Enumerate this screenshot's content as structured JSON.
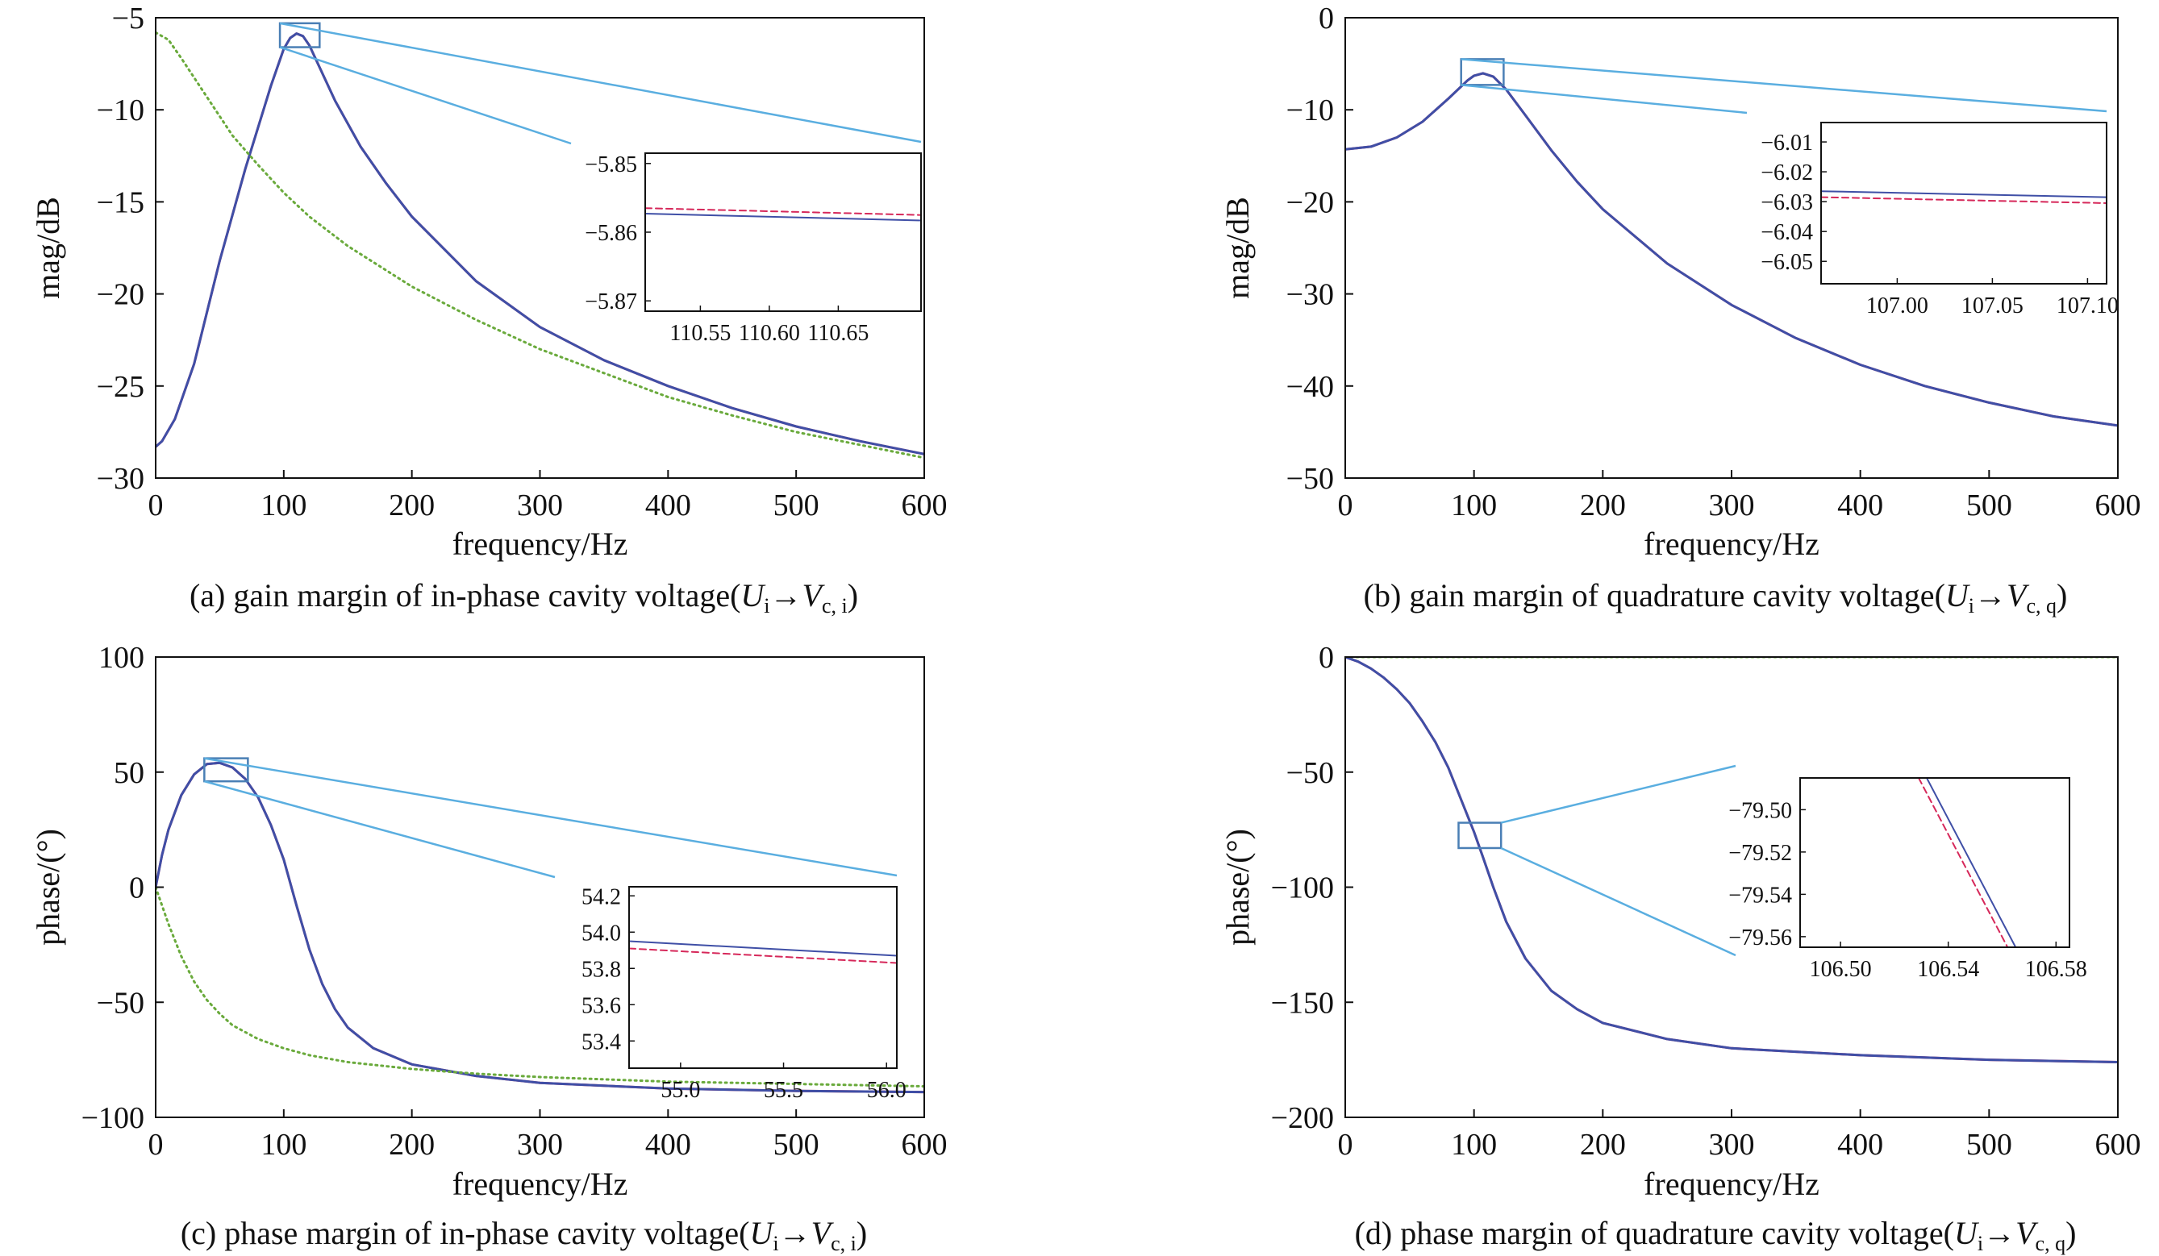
{
  "colors": {
    "red_series": "#d6285a",
    "blue_series": "#3f4fa6",
    "green_series": "#6aaa3c",
    "zoom_box": "#4a7fb5",
    "connector": "#5aaee0",
    "axis": "#111111"
  },
  "chart_data": [
    {
      "id": "a",
      "type": "line",
      "caption": {
        "prefix": "(a) gain margin of in-phase cavity voltage(",
        "U": "U",
        "usub": "i",
        "arrow": "→",
        "V": "V",
        "vsub": "c, i",
        "suffix": ")"
      },
      "xlabel": "frequency/Hz",
      "ylabel": "mag/dB",
      "xlim": [
        0,
        600
      ],
      "ylim": [
        -30,
        -5
      ],
      "xticks": [
        "0",
        "100",
        "200",
        "300",
        "400",
        "500",
        "600"
      ],
      "yticks": [
        "−5",
        "−10",
        "−15",
        "−20",
        "−25",
        "−30"
      ],
      "series": [
        {
          "color_key": "red_series",
          "style": "solid",
          "x": [
            0,
            5,
            15,
            30,
            50,
            70,
            90,
            100,
            105,
            110,
            115,
            120,
            130,
            140,
            160,
            180,
            200,
            250,
            300,
            350,
            400,
            450,
            500,
            550,
            600
          ],
          "y": [
            -28.3,
            -28.0,
            -26.8,
            -23.8,
            -18.2,
            -13.2,
            -8.7,
            -6.7,
            -6.1,
            -5.86,
            -6.0,
            -6.5,
            -8.0,
            -9.5,
            -12.0,
            -14.0,
            -15.8,
            -19.3,
            -21.8,
            -23.6,
            -25.0,
            -26.2,
            -27.2,
            -28.0,
            -28.7
          ]
        },
        {
          "color_key": "blue_series",
          "style": "solid",
          "x": [
            0,
            5,
            15,
            30,
            50,
            70,
            90,
            100,
            105,
            110,
            115,
            120,
            130,
            140,
            160,
            180,
            200,
            250,
            300,
            350,
            400,
            450,
            500,
            550,
            600
          ],
          "y": [
            -28.3,
            -28.0,
            -26.8,
            -23.8,
            -18.2,
            -13.2,
            -8.7,
            -6.7,
            -6.1,
            -5.86,
            -6.0,
            -6.5,
            -8.0,
            -9.5,
            -12.0,
            -14.0,
            -15.8,
            -19.3,
            -21.8,
            -23.6,
            -25.0,
            -26.2,
            -27.2,
            -28.0,
            -28.7
          ]
        },
        {
          "color_key": "green_series",
          "style": "dotted",
          "x": [
            0,
            10,
            20,
            40,
            60,
            80,
            100,
            120,
            150,
            200,
            250,
            300,
            350,
            400,
            450,
            500,
            550,
            600
          ],
          "y": [
            -5.8,
            -6.2,
            -7.2,
            -9.3,
            -11.4,
            -13.0,
            -14.5,
            -15.8,
            -17.4,
            -19.6,
            -21.4,
            -23.0,
            -24.3,
            -25.6,
            -26.6,
            -27.5,
            -28.2,
            -28.9
          ]
        }
      ],
      "zoom_box": {
        "x": [
          97,
          128
        ],
        "y": [
          -6.6,
          -5.3
        ]
      },
      "inset": {
        "xlim": [
          110.51,
          110.71
        ],
        "ylim": [
          -5.8715,
          -5.8485
        ],
        "xticks": [
          {
            "v": 110.55,
            "t": "110.55"
          },
          {
            "v": 110.6,
            "t": "110.60"
          },
          {
            "v": 110.65,
            "t": "110.65"
          }
        ],
        "yticks": [
          {
            "v": -5.85,
            "t": "−5.85"
          },
          {
            "v": -5.86,
            "t": "−5.86"
          },
          {
            "v": -5.87,
            "t": "−5.87"
          }
        ],
        "series": [
          {
            "color_key": "blue_series",
            "style": "solid",
            "x": [
              110.51,
              110.71
            ],
            "y": [
              -5.8573,
              -5.8583
            ]
          },
          {
            "color_key": "red_series",
            "style": "dashed",
            "x": [
              110.51,
              110.71
            ],
            "y": [
              -5.8565,
              -5.8575
            ]
          }
        ]
      }
    },
    {
      "id": "b",
      "type": "line",
      "caption": {
        "prefix": "(b) gain margin of quadrature cavity voltage(",
        "U": "U",
        "usub": "i",
        "arrow": "→",
        "V": "V",
        "vsub": "c, q",
        "suffix": ")"
      },
      "xlabel": "frequency/Hz",
      "ylabel": "mag/dB",
      "xlim": [
        0,
        600
      ],
      "ylim": [
        -50,
        0
      ],
      "xticks": [
        "0",
        "100",
        "200",
        "300",
        "400",
        "500",
        "600"
      ],
      "yticks": [
        "0",
        "−10",
        "−20",
        "−30",
        "−40",
        "−50"
      ],
      "series": [
        {
          "color_key": "red_series",
          "style": "solid",
          "x": [
            0,
            20,
            40,
            60,
            80,
            95,
            100,
            107,
            115,
            125,
            140,
            160,
            180,
            200,
            250,
            300,
            350,
            400,
            450,
            500,
            550,
            600
          ],
          "y": [
            -14.3,
            -14.0,
            -13.0,
            -11.3,
            -8.8,
            -6.8,
            -6.3,
            -6.03,
            -6.4,
            -7.8,
            -10.6,
            -14.4,
            -17.8,
            -20.8,
            -26.7,
            -31.2,
            -34.8,
            -37.7,
            -40.0,
            -41.8,
            -43.3,
            -44.3
          ]
        },
        {
          "color_key": "blue_series",
          "style": "solid",
          "x": [
            0,
            20,
            40,
            60,
            80,
            95,
            100,
            107,
            115,
            125,
            140,
            160,
            180,
            200,
            250,
            300,
            350,
            400,
            450,
            500,
            550,
            600
          ],
          "y": [
            -14.3,
            -14.0,
            -13.0,
            -11.3,
            -8.8,
            -6.8,
            -6.3,
            -6.03,
            -6.4,
            -7.8,
            -10.6,
            -14.4,
            -17.8,
            -20.8,
            -26.7,
            -31.2,
            -34.8,
            -37.7,
            -40.0,
            -41.8,
            -43.3,
            -44.3
          ]
        }
      ],
      "zoom_box": {
        "x": [
          90,
          123
        ],
        "y": [
          -7.3,
          -4.5
        ]
      },
      "inset": {
        "xlim": [
          106.96,
          107.11
        ],
        "ylim": [
          -6.0575,
          -6.0035
        ],
        "xticks": [
          {
            "v": 107.0,
            "t": "107.00"
          },
          {
            "v": 107.05,
            "t": "107.05"
          },
          {
            "v": 107.1,
            "t": "107.10"
          }
        ],
        "yticks": [
          {
            "v": -6.01,
            "t": "−6.01"
          },
          {
            "v": -6.02,
            "t": "−6.02"
          },
          {
            "v": -6.03,
            "t": "−6.03"
          },
          {
            "v": -6.04,
            "t": "−6.04"
          },
          {
            "v": -6.05,
            "t": "−6.05"
          }
        ],
        "series": [
          {
            "color_key": "blue_series",
            "style": "solid",
            "x": [
              106.96,
              107.11
            ],
            "y": [
              -6.0265,
              -6.0285
            ]
          },
          {
            "color_key": "red_series",
            "style": "dashed",
            "x": [
              106.96,
              107.11
            ],
            "y": [
              -6.0285,
              -6.0305
            ]
          }
        ]
      }
    },
    {
      "id": "c",
      "type": "line",
      "caption": {
        "prefix": "(c) phase margin of in-phase cavity voltage(",
        "U": "U",
        "usub": "i",
        "arrow": "→",
        "V": "V",
        "vsub": "c, i",
        "suffix": ")"
      },
      "xlabel": "frequency/Hz",
      "ylabel": "phase/(°)",
      "xlim": [
        0,
        600
      ],
      "ylim": [
        -100,
        100
      ],
      "xticks": [
        "0",
        "100",
        "200",
        "300",
        "400",
        "500",
        "600"
      ],
      "yticks": [
        "100",
        "50",
        "0",
        "−50",
        "−100"
      ],
      "series": [
        {
          "color_key": "red_series",
          "style": "solid",
          "x": [
            0,
            5,
            10,
            20,
            30,
            40,
            50,
            60,
            70,
            80,
            90,
            100,
            110,
            120,
            130,
            140,
            150,
            170,
            200,
            250,
            300,
            400,
            500,
            600
          ],
          "y": [
            0,
            14,
            25,
            40,
            49,
            53.5,
            54,
            52,
            47,
            39,
            27,
            12,
            -8,
            -27,
            -42,
            -53,
            -61,
            -70,
            -77,
            -82,
            -85,
            -87.5,
            -88.5,
            -89
          ]
        },
        {
          "color_key": "blue_series",
          "style": "solid",
          "x": [
            0,
            5,
            10,
            20,
            30,
            40,
            50,
            60,
            70,
            80,
            90,
            100,
            110,
            120,
            130,
            140,
            150,
            170,
            200,
            250,
            300,
            400,
            500,
            600
          ],
          "y": [
            0,
            14,
            25,
            40,
            49,
            53.5,
            54,
            52,
            47,
            39,
            27,
            12,
            -8,
            -27,
            -42,
            -53,
            -61,
            -70,
            -77,
            -82,
            -85,
            -87.5,
            -88.5,
            -89
          ]
        },
        {
          "color_key": "green_series",
          "style": "dotted",
          "x": [
            0,
            10,
            20,
            30,
            40,
            50,
            60,
            80,
            100,
            120,
            150,
            200,
            250,
            300,
            400,
            500,
            600
          ],
          "y": [
            0,
            -16,
            -30,
            -41,
            -49,
            -55,
            -60,
            -66,
            -70,
            -73,
            -76,
            -79,
            -81,
            -82.5,
            -84.5,
            -85.5,
            -86.5
          ]
        }
      ],
      "zoom_box": {
        "x": [
          38,
          72
        ],
        "y": [
          46,
          56
        ]
      },
      "inset": {
        "xlim": [
          54.75,
          56.05
        ],
        "ylim": [
          53.25,
          54.25
        ],
        "xticks": [
          {
            "v": 55.0,
            "t": "55.0"
          },
          {
            "v": 55.5,
            "t": "55.5"
          },
          {
            "v": 56.0,
            "t": "56.0"
          }
        ],
        "yticks": [
          {
            "v": 54.2,
            "t": "54.2"
          },
          {
            "v": 54.0,
            "t": "54.0"
          },
          {
            "v": 53.8,
            "t": "53.8"
          },
          {
            "v": 53.6,
            "t": "53.6"
          },
          {
            "v": 53.4,
            "t": "53.4"
          }
        ],
        "series": [
          {
            "color_key": "blue_series",
            "style": "solid",
            "x": [
              54.75,
              56.05
            ],
            "y": [
              53.95,
              53.87
            ]
          },
          {
            "color_key": "red_series",
            "style": "dashed",
            "x": [
              54.75,
              56.05
            ],
            "y": [
              53.91,
              53.83
            ]
          }
        ]
      }
    },
    {
      "id": "d",
      "type": "line",
      "caption": {
        "prefix": "(d) phase margin of quadrature cavity voltage(",
        "U": "U",
        "usub": "i",
        "arrow": "→",
        "V": "V",
        "vsub": "c, q",
        "suffix": ")"
      },
      "xlabel": "frequency/Hz",
      "ylabel": "phase/(°)",
      "xlim": [
        0,
        600
      ],
      "ylim": [
        -200,
        0
      ],
      "xticks": [
        "0",
        "100",
        "200",
        "300",
        "400",
        "500",
        "600"
      ],
      "yticks": [
        "0",
        "−50",
        "−100",
        "−150",
        "−200"
      ],
      "series": [
        {
          "color_key": "green_series",
          "style": "dotted",
          "x": [
            0,
            600
          ],
          "y": [
            0,
            0
          ]
        },
        {
          "color_key": "red_series",
          "style": "solid",
          "x": [
            0,
            10,
            20,
            30,
            40,
            50,
            60,
            70,
            80,
            90,
            100,
            107,
            115,
            125,
            140,
            160,
            180,
            200,
            250,
            300,
            400,
            500,
            600
          ],
          "y": [
            0,
            -2,
            -5,
            -9,
            -14,
            -20,
            -28,
            -37,
            -48,
            -62,
            -76,
            -87,
            -100,
            -115,
            -131,
            -145,
            -153,
            -159,
            -166,
            -170,
            -173,
            -175,
            -176
          ]
        },
        {
          "color_key": "blue_series",
          "style": "solid",
          "x": [
            0,
            10,
            20,
            30,
            40,
            50,
            60,
            70,
            80,
            90,
            100,
            107,
            115,
            125,
            140,
            160,
            180,
            200,
            250,
            300,
            400,
            500,
            600
          ],
          "y": [
            0,
            -2,
            -5,
            -9,
            -14,
            -20,
            -28,
            -37,
            -48,
            -62,
            -76,
            -87,
            -100,
            -115,
            -131,
            -145,
            -153,
            -159,
            -166,
            -170,
            -173,
            -175,
            -176
          ]
        }
      ],
      "zoom_box": {
        "x": [
          88,
          121
        ],
        "y": [
          -83,
          -72
        ]
      },
      "inset": {
        "xlim": [
          106.485,
          106.585
        ],
        "ylim": [
          -79.565,
          -79.485
        ],
        "xticks": [
          {
            "v": 106.5,
            "t": "106.50"
          },
          {
            "v": 106.54,
            "t": "106.54"
          },
          {
            "v": 106.58,
            "t": "106.58"
          }
        ],
        "yticks": [
          {
            "v": -79.5,
            "t": "−79.50"
          },
          {
            "v": -79.52,
            "t": "−79.52"
          },
          {
            "v": -79.54,
            "t": "−79.54"
          },
          {
            "v": -79.56,
            "t": "−79.56"
          }
        ],
        "series": [
          {
            "color_key": "blue_series",
            "style": "solid",
            "x": [
              106.532,
              106.565
            ],
            "y": [
              -79.485,
              -79.565
            ]
          },
          {
            "color_key": "red_series",
            "style": "dashed",
            "x": [
              106.529,
              106.562
            ],
            "y": [
              -79.485,
              -79.565
            ]
          }
        ]
      }
    }
  ]
}
